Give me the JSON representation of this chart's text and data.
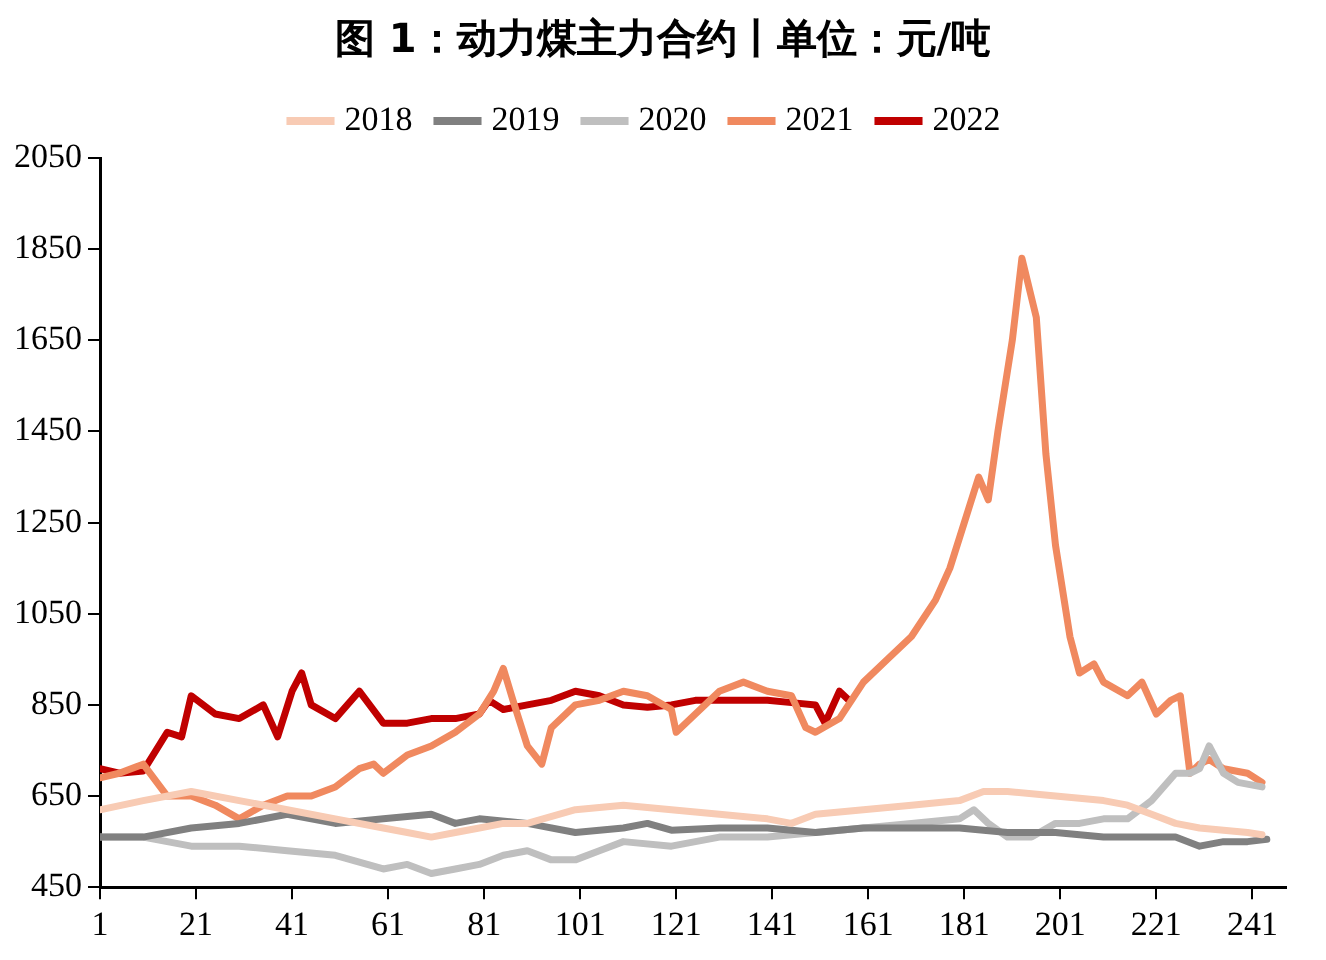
{
  "chart_data": {
    "type": "line",
    "title": "图 1：动力煤主力合约丨单位：元/吨",
    "legend": "top",
    "grid": false,
    "marker": "none",
    "line_style": "solid",
    "xlim": [
      1,
      248
    ],
    "xticks": [
      1,
      21,
      41,
      61,
      81,
      101,
      121,
      141,
      161,
      181,
      201,
      221,
      241
    ],
    "ylim": [
      450,
      2050
    ],
    "yticks": [
      450,
      650,
      850,
      1050,
      1250,
      1450,
      1650,
      1850,
      2050
    ],
    "series": [
      {
        "name": "2018",
        "color": "#f8cbb4",
        "x": [
          1,
          10,
          20,
          30,
          40,
          50,
          60,
          65,
          70,
          75,
          80,
          85,
          90,
          100,
          110,
          120,
          130,
          140,
          145,
          150,
          160,
          170,
          180,
          185,
          190,
          200,
          210,
          215,
          220,
          225,
          230,
          240,
          243
        ],
        "values": [
          620,
          640,
          660,
          640,
          620,
          600,
          580,
          570,
          560,
          570,
          580,
          590,
          590,
          620,
          630,
          620,
          610,
          600,
          590,
          610,
          620,
          630,
          640,
          660,
          660,
          650,
          640,
          630,
          610,
          590,
          580,
          570,
          565
        ]
      },
      {
        "name": "2019",
        "color": "#808080",
        "x": [
          1,
          10,
          20,
          30,
          40,
          45,
          50,
          60,
          70,
          75,
          80,
          90,
          100,
          110,
          115,
          120,
          130,
          140,
          150,
          160,
          170,
          180,
          190,
          200,
          210,
          220,
          225,
          230,
          235,
          240,
          244
        ],
        "values": [
          560,
          560,
          580,
          590,
          610,
          600,
          590,
          600,
          610,
          590,
          600,
          590,
          570,
          580,
          590,
          575,
          580,
          580,
          570,
          580,
          580,
          580,
          570,
          570,
          560,
          560,
          560,
          540,
          550,
          550,
          555
        ]
      },
      {
        "name": "2020",
        "color": "#bfbfbf",
        "x": [
          1,
          10,
          20,
          30,
          40,
          50,
          60,
          65,
          70,
          75,
          80,
          85,
          90,
          95,
          100,
          105,
          110,
          120,
          130,
          140,
          150,
          160,
          170,
          180,
          183,
          186,
          190,
          195,
          200,
          205,
          210,
          215,
          220,
          225,
          228,
          230,
          232,
          235,
          238,
          243
        ],
        "values": [
          560,
          560,
          540,
          540,
          530,
          520,
          490,
          500,
          480,
          490,
          500,
          520,
          530,
          510,
          510,
          530,
          550,
          540,
          560,
          560,
          570,
          580,
          590,
          600,
          620,
          590,
          560,
          560,
          590,
          590,
          600,
          600,
          640,
          700,
          700,
          710,
          760,
          700,
          680,
          670
        ]
      },
      {
        "name": "2021",
        "color": "#f0895f",
        "x": [
          1,
          5,
          10,
          15,
          20,
          25,
          30,
          35,
          40,
          45,
          50,
          55,
          58,
          60,
          65,
          70,
          75,
          80,
          83,
          85,
          87,
          90,
          93,
          95,
          100,
          105,
          110,
          115,
          120,
          121,
          125,
          130,
          135,
          140,
          145,
          148,
          150,
          155,
          160,
          165,
          170,
          175,
          178,
          181,
          184,
          186,
          188,
          191,
          193,
          196,
          198,
          200,
          203,
          205,
          208,
          210,
          215,
          218,
          221,
          224,
          226,
          228,
          230,
          232,
          235,
          240,
          243
        ],
        "values": [
          690,
          700,
          720,
          650,
          650,
          630,
          600,
          630,
          650,
          650,
          670,
          710,
          720,
          700,
          740,
          760,
          790,
          830,
          880,
          930,
          860,
          760,
          720,
          800,
          850,
          860,
          880,
          870,
          840,
          790,
          830,
          880,
          900,
          880,
          870,
          800,
          790,
          820,
          900,
          950,
          1000,
          1080,
          1150,
          1250,
          1350,
          1300,
          1450,
          1650,
          1830,
          1700,
          1400,
          1200,
          1000,
          920,
          940,
          900,
          870,
          900,
          830,
          860,
          870,
          700,
          720,
          730,
          710,
          700,
          680
        ]
      },
      {
        "name": "2022",
        "color": "#c00000",
        "x": [
          1,
          5,
          10,
          15,
          18,
          20,
          25,
          30,
          35,
          38,
          41,
          43,
          45,
          50,
          55,
          60,
          65,
          70,
          75,
          80,
          82,
          85,
          90,
          95,
          100,
          105,
          110,
          115,
          120,
          125,
          130,
          135,
          140,
          145,
          150,
          152,
          155,
          157
        ],
        "values": [
          710,
          700,
          705,
          790,
          780,
          870,
          830,
          820,
          850,
          780,
          880,
          920,
          850,
          820,
          880,
          810,
          810,
          820,
          820,
          830,
          860,
          840,
          850,
          860,
          880,
          870,
          850,
          845,
          850,
          860,
          860,
          860,
          860,
          855,
          850,
          810,
          880,
          860
        ]
      }
    ]
  }
}
